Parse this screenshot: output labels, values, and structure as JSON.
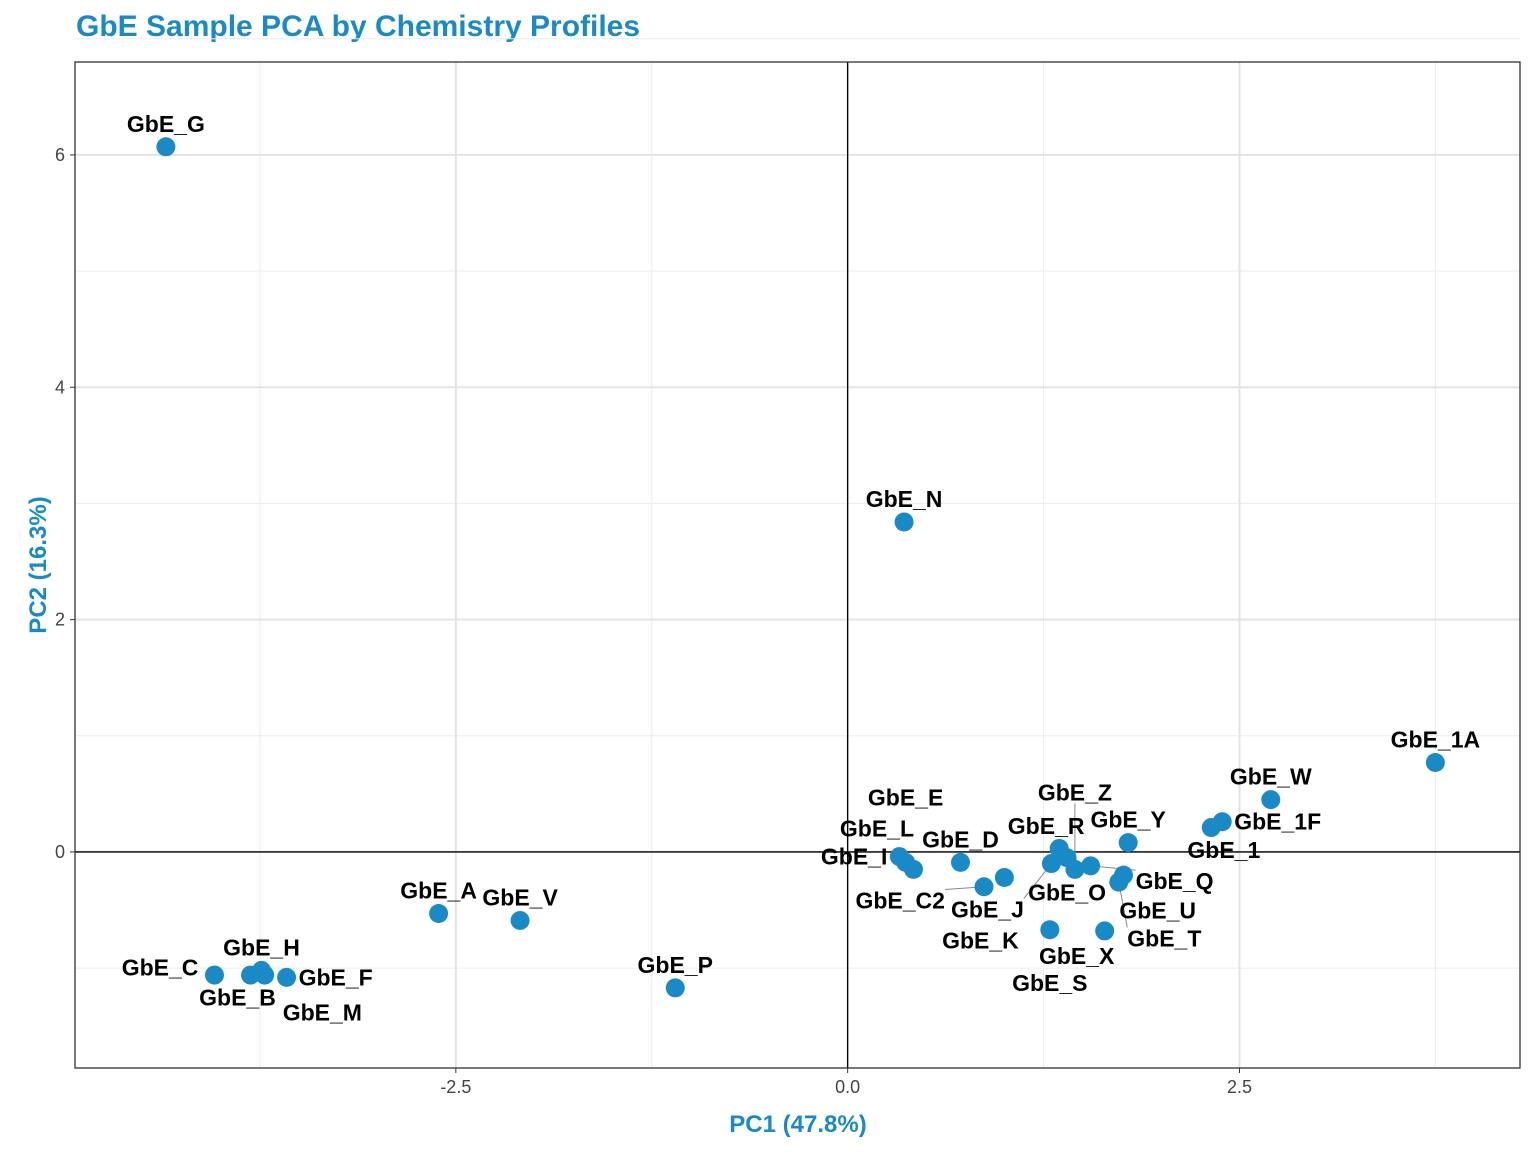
{
  "chart_data": {
    "type": "scatter",
    "title": "GbE Sample PCA by Chemistry Profiles",
    "xlabel": "PC1 (47.8%)",
    "ylabel": "PC2 (16.3%)",
    "xlim": [
      -4.93,
      4.29
    ],
    "ylim": [
      -1.86,
      6.8
    ],
    "xticks": [
      -2.5,
      0.0,
      2.5
    ],
    "xtick_labels": [
      "-2.5",
      "0.0",
      "2.5"
    ],
    "yticks": [
      0,
      2,
      4,
      6
    ],
    "ytick_labels": [
      "0",
      "2",
      "4",
      "6"
    ],
    "grid": true,
    "color": "#1a8ac6",
    "points": [
      {
        "label": "GbE_G",
        "x": -4.35,
        "y": 6.07
      },
      {
        "label": "GbE_N",
        "x": 0.36,
        "y": 2.84
      },
      {
        "label": "GbE_1A",
        "x": 3.75,
        "y": 0.77
      },
      {
        "label": "GbE_W",
        "x": 2.7,
        "y": 0.45
      },
      {
        "label": "GbE_1",
        "x": 2.32,
        "y": 0.21
      },
      {
        "label": "GbE_1F",
        "x": 2.39,
        "y": 0.26
      },
      {
        "label": "GbE_Y",
        "x": 1.79,
        "y": 0.08
      },
      {
        "label": "GbE_R",
        "x": 1.35,
        "y": 0.03
      },
      {
        "label": "GbE_O",
        "x": 1.4,
        "y": -0.05
      },
      {
        "label": "GbE_Q",
        "x": 1.55,
        "y": -0.12
      },
      {
        "label": "GbE_Z",
        "x": 1.45,
        "y": -0.15
      },
      {
        "label": "GbE_J",
        "x": 1.3,
        "y": -0.1
      },
      {
        "label": "GbE_U",
        "x": 1.76,
        "y": -0.2
      },
      {
        "label": "GbE_T",
        "x": 1.73,
        "y": -0.26
      },
      {
        "label": "GbE_D",
        "x": 0.72,
        "y": -0.09
      },
      {
        "label": "GbE_K",
        "x": 1.0,
        "y": -0.22
      },
      {
        "label": "GbE_C2",
        "x": 0.87,
        "y": -0.3
      },
      {
        "label": "GbE_I",
        "x": 0.33,
        "y": -0.04
      },
      {
        "label": "GbE_L",
        "x": 0.42,
        "y": -0.15
      },
      {
        "label": "GbE_E",
        "x": 0.37,
        "y": -0.09
      },
      {
        "label": "GbE_X",
        "x": 1.64,
        "y": -0.68
      },
      {
        "label": "GbE_S",
        "x": 1.29,
        "y": -0.67
      },
      {
        "label": "GbE_V",
        "x": -2.09,
        "y": -0.59
      },
      {
        "label": "GbE_A",
        "x": -2.61,
        "y": -0.53
      },
      {
        "label": "GbE_P",
        "x": -1.1,
        "y": -1.17
      },
      {
        "label": "GbE_H",
        "x": -3.74,
        "y": -1.02
      },
      {
        "label": "GbE_B",
        "x": -3.81,
        "y": -1.06
      },
      {
        "label": "GbE_C",
        "x": -4.04,
        "y": -1.06
      },
      {
        "label": "GbE_F",
        "x": -3.58,
        "y": -1.08
      },
      {
        "label": "GbE_M",
        "x": -3.72,
        "y": -1.06
      }
    ]
  }
}
